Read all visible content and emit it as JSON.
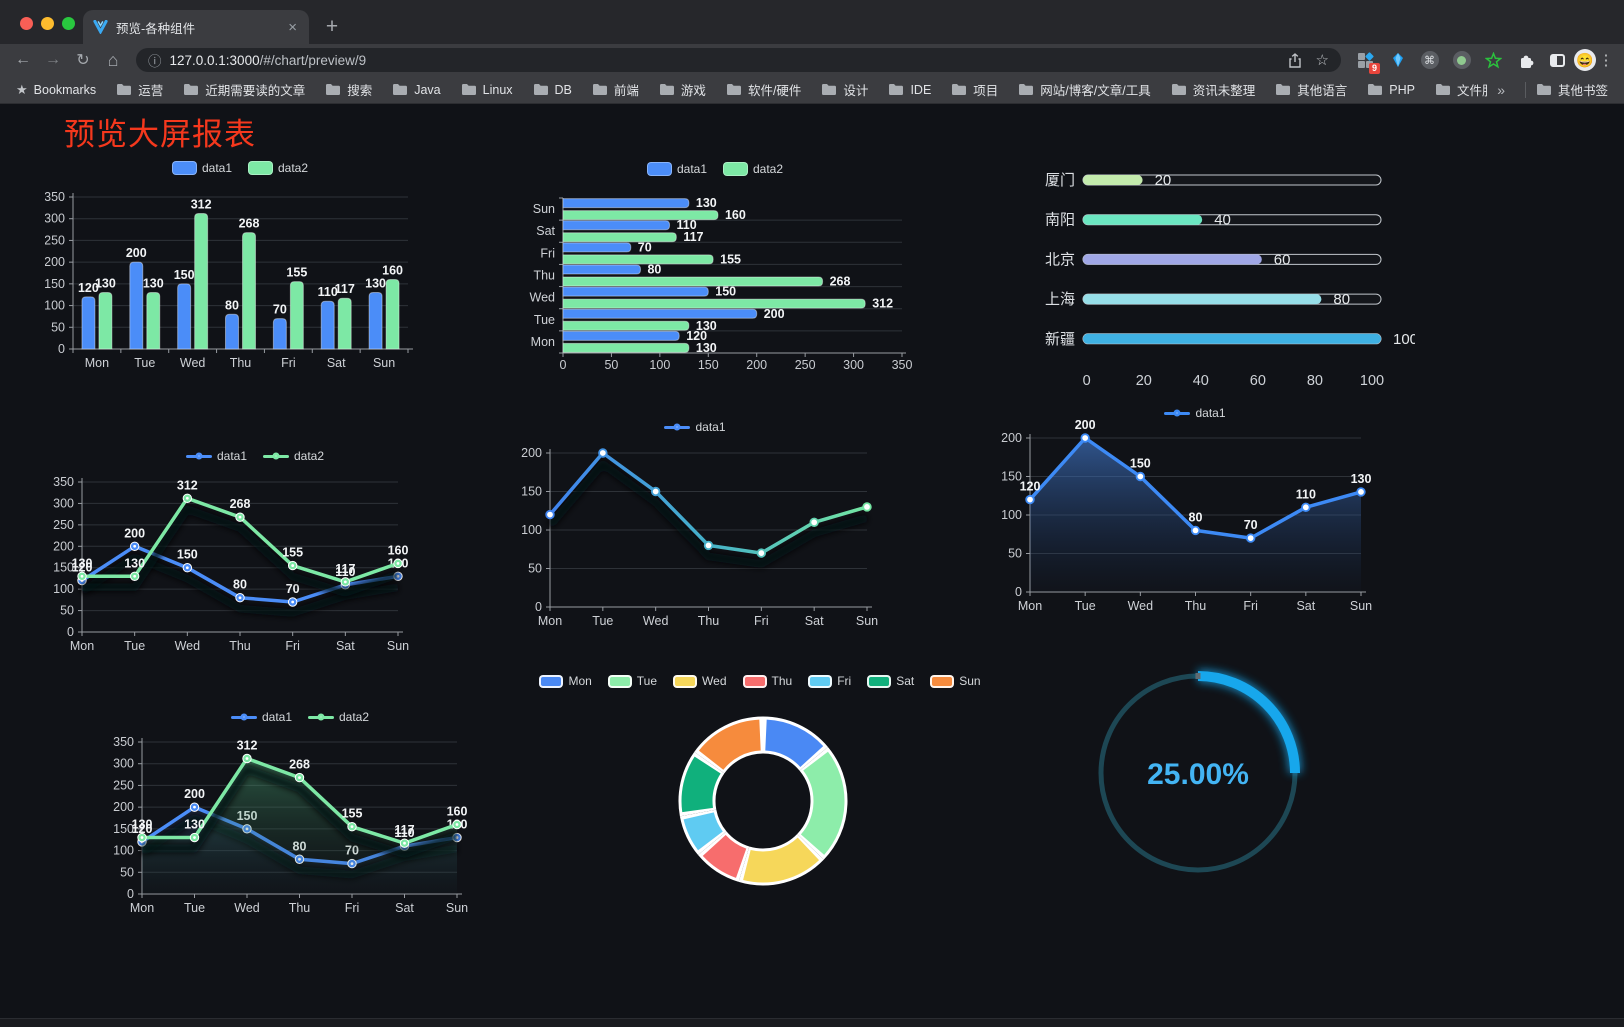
{
  "browser": {
    "tab": {
      "title": "预览-各种组件",
      "close_glyph": "×",
      "new_tab_glyph": "+"
    },
    "url_host": "127.0.0.1:3000",
    "url_path": "/#/chart/preview/9",
    "extension_badge": "9",
    "toolbar_icons": [
      "back-icon",
      "forward-icon",
      "reload-icon",
      "home-icon",
      "info-icon",
      "share-icon",
      "bookmark-star-icon",
      "extension-grid-icon",
      "gem-icon",
      "command-icon",
      "record-icon",
      "green-star-icon",
      "puzzle-icon",
      "sidebar-icon",
      "avatar-emoji",
      "menu-dots-icon"
    ],
    "bookmarks_bar": {
      "star_label": "Bookmarks",
      "folders": [
        "运营",
        "近期需要读的文章",
        "搜索",
        "Java",
        "Linux",
        "DB",
        "前端",
        "游戏",
        "软件/硬件",
        "设计",
        "IDE",
        "项目",
        "网站/博客/文章/工具",
        "资讯未整理",
        "其他语言",
        "PHP",
        "文件服务器"
      ],
      "overflow_glyph": "»",
      "other_bookmarks": "其他书签"
    }
  },
  "page": {
    "title": "预览大屏报表",
    "title_color": "#f5381d",
    "background": "#101217"
  },
  "chart_data": [
    {
      "id": "grouped-bar",
      "type": "bar",
      "categories": [
        "Mon",
        "Tue",
        "Wed",
        "Thu",
        "Fri",
        "Sat",
        "Sun"
      ],
      "series": [
        {
          "name": "data1",
          "color": "#4b8df8",
          "values": [
            120,
            200,
            150,
            80,
            70,
            110,
            130
          ]
        },
        {
          "name": "data2",
          "color": "#7de8a5",
          "values": [
            130,
            130,
            312,
            268,
            155,
            117,
            160
          ]
        }
      ],
      "ylim": [
        0,
        350
      ],
      "yticks": [
        0,
        50,
        100,
        150,
        200,
        250,
        300,
        350
      ],
      "legend_position": "top",
      "grid": true,
      "value_labels": true
    },
    {
      "id": "horizontal-bar",
      "type": "bar",
      "orientation": "horizontal",
      "categories_top_to_bottom": [
        "Sun",
        "Sat",
        "Fri",
        "Thu",
        "Wed",
        "Tue",
        "Mon"
      ],
      "series": [
        {
          "name": "data1",
          "color": "#4b8df8",
          "values": [
            130,
            110,
            70,
            80,
            150,
            200,
            120
          ]
        },
        {
          "name": "data2",
          "color": "#7de8a5",
          "values": [
            160,
            117,
            155,
            268,
            312,
            130,
            130
          ]
        }
      ],
      "xlim": [
        0,
        350
      ],
      "xticks": [
        0,
        50,
        100,
        150,
        200,
        250,
        300,
        350
      ],
      "legend_position": "top",
      "value_labels": true
    },
    {
      "id": "progress-bars",
      "type": "bar",
      "orientation": "horizontal",
      "variant": "progress",
      "categories": [
        "厦门",
        "南阳",
        "北京",
        "上海",
        "新疆"
      ],
      "values": [
        20,
        40,
        60,
        80,
        100
      ],
      "colors": [
        "#c4ebad",
        "#6be6c1",
        "#a0a7e6",
        "#96dee8",
        "#3fb1e3"
      ],
      "xlim": [
        0,
        100
      ],
      "xticks": [
        0,
        20,
        40,
        60,
        80,
        100
      ]
    },
    {
      "id": "line-two-series",
      "type": "line",
      "categories": [
        "Mon",
        "Tue",
        "Wed",
        "Thu",
        "Fri",
        "Sat",
        "Sun"
      ],
      "series": [
        {
          "name": "data1",
          "color": "#4b8df8",
          "values": [
            120,
            200,
            150,
            80,
            70,
            110,
            130
          ]
        },
        {
          "name": "data2",
          "color": "#7de8a5",
          "values": [
            130,
            130,
            312,
            268,
            155,
            117,
            160
          ]
        }
      ],
      "ylim": [
        0,
        350
      ],
      "yticks": [
        0,
        50,
        100,
        150,
        200,
        250,
        300,
        350
      ],
      "legend_position": "top",
      "value_labels": true
    },
    {
      "id": "gradient-line",
      "type": "line",
      "categories": [
        "Mon",
        "Tue",
        "Wed",
        "Thu",
        "Fri",
        "Sat",
        "Sun"
      ],
      "series": [
        {
          "name": "data1",
          "legend_color": "#4b8df8",
          "color_gradient": [
            "#4083f0",
            "#45b1c8",
            "#74e6a2"
          ],
          "values": [
            120,
            200,
            150,
            80,
            70,
            110,
            130
          ]
        }
      ],
      "ylim": [
        0,
        200
      ],
      "yticks": [
        0,
        50,
        100,
        150,
        200
      ],
      "legend_position": "top",
      "value_labels": false
    },
    {
      "id": "area-line",
      "type": "area",
      "categories": [
        "Mon",
        "Tue",
        "Wed",
        "Thu",
        "Fri",
        "Sat",
        "Sun"
      ],
      "series": [
        {
          "name": "data1",
          "color": "#3d8af5",
          "values": [
            120,
            200,
            150,
            80,
            70,
            110,
            130
          ]
        }
      ],
      "ylim": [
        0,
        200
      ],
      "yticks": [
        0,
        50,
        100,
        150,
        200
      ],
      "legend_position": "top",
      "value_labels": true
    },
    {
      "id": "two-series-area",
      "type": "area",
      "categories": [
        "Mon",
        "Tue",
        "Wed",
        "Thu",
        "Fri",
        "Sat",
        "Sun"
      ],
      "series": [
        {
          "name": "data1",
          "color": "#4b8df8",
          "values": [
            120,
            200,
            150,
            80,
            70,
            110,
            130
          ]
        },
        {
          "name": "data2",
          "color": "#7de8a5",
          "values": [
            130,
            130,
            312,
            268,
            155,
            117,
            160
          ]
        }
      ],
      "ylim": [
        0,
        350
      ],
      "yticks": [
        0,
        50,
        100,
        150,
        200,
        250,
        300,
        350
      ],
      "legend_position": "top",
      "value_labels": true
    },
    {
      "id": "donut",
      "type": "pie",
      "categories": [
        "Mon",
        "Tue",
        "Wed",
        "Thu",
        "Fri",
        "Sat",
        "Sun"
      ],
      "values": [
        120,
        200,
        150,
        80,
        70,
        110,
        130
      ],
      "colors": [
        "#4a89f4",
        "#8dedaa",
        "#f6d75a",
        "#f76d6d",
        "#5fcbf2",
        "#10b07c",
        "#f68b3d"
      ],
      "inner_radius_ratio": 0.6,
      "border_color": "#ffffff",
      "legend_position": "top"
    },
    {
      "id": "gauge",
      "type": "gauge",
      "value": 25,
      "display": "25.00%",
      "progress_color": "#17a7ec",
      "track_color": "#1d4754",
      "text_color": "#43b4f3"
    }
  ]
}
